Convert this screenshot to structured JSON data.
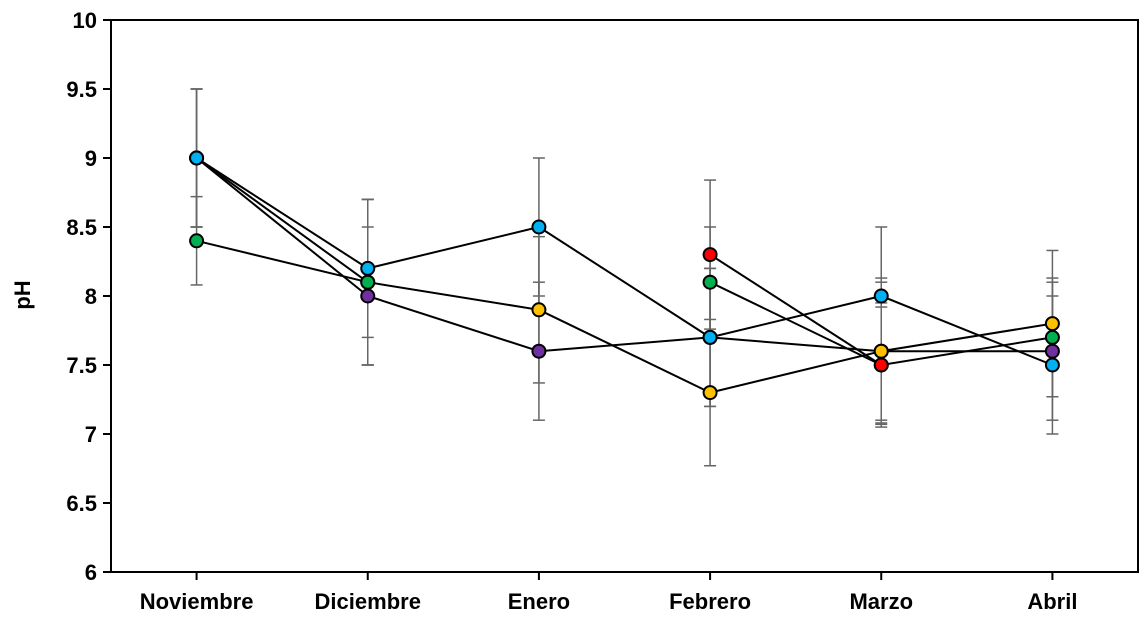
{
  "chart_data": {
    "type": "line",
    "title": "",
    "xlabel": "",
    "ylabel": "pH",
    "ylim": [
      6,
      10
    ],
    "yticks": [
      6,
      6.5,
      7,
      7.5,
      8,
      8.5,
      9,
      9.5,
      10
    ],
    "ytick_labels": [
      "6",
      "6.5",
      "7",
      "7.5",
      "8",
      "8.5",
      "9",
      "9.5",
      "10"
    ],
    "categories": [
      "Noviembre",
      "Diciembre",
      "Enero",
      "Febrero",
      "Marzo",
      "Abril"
    ],
    "grid": false,
    "legend": "none",
    "series": [
      {
        "color": "#7030a0",
        "values": [
          9.0,
          8.0,
          7.6,
          7.7,
          7.6,
          7.6
        ],
        "errors": [
          0.5,
          0.5,
          0.5,
          0.5,
          0.5,
          0.5
        ]
      },
      {
        "color": "#ffc000",
        "values": [
          9.0,
          8.1,
          7.9,
          7.3,
          7.6,
          7.8
        ],
        "errors": [
          0.5,
          0.6,
          0.53,
          0.53,
          0.53,
          0.53
        ]
      },
      {
        "color": "#00b0f0",
        "values": [
          9.0,
          8.2,
          8.5,
          7.7,
          8.0,
          7.5
        ],
        "errors": [
          0.5,
          0.5,
          0.5,
          0.5,
          0.5,
          0.5
        ]
      },
      {
        "color": "#00b050",
        "values": [
          8.4,
          8.1,
          null,
          8.1,
          7.5,
          7.7
        ],
        "errors": [
          0.32,
          0.6,
          null,
          0.4,
          0.42,
          0.43
        ]
      },
      {
        "color": "#ff0000",
        "values": [
          null,
          null,
          null,
          8.3,
          7.5,
          null
        ],
        "errors": [
          null,
          null,
          null,
          0.54,
          0.45,
          null
        ]
      }
    ]
  }
}
